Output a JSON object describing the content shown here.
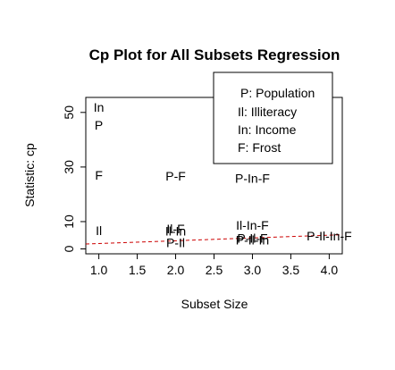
{
  "chart_data": {
    "type": "scatter",
    "title": "Cp Plot for All Subsets Regression",
    "xlabel": "Subset Size",
    "ylabel": "Statistic: cp",
    "xlim": [
      0.83,
      4.17
    ],
    "ylim": [
      -1.8,
      55.5
    ],
    "xticks": [
      "1.0",
      "1.5",
      "2.0",
      "2.5",
      "3.0",
      "3.5",
      "4.0"
    ],
    "xtick_values": [
      1.0,
      1.5,
      2.0,
      2.5,
      3.0,
      3.5,
      4.0
    ],
    "yticks": [
      "0",
      "10",
      "30",
      "50"
    ],
    "ytick_values": [
      0,
      10,
      30,
      50
    ],
    "grid": false,
    "legend_position": "top-right",
    "legend": [
      "P: Population",
      "Il: Illiteracy",
      "In: Income",
      "F: Frost"
    ],
    "points": [
      {
        "size": 1,
        "cp": 51.4,
        "label": "In"
      },
      {
        "size": 1,
        "cp": 45.0,
        "label": "P"
      },
      {
        "size": 1,
        "cp": 26.6,
        "label": "F"
      },
      {
        "size": 1,
        "cp": 6.3,
        "label": "Il"
      },
      {
        "size": 2,
        "cp": 26.3,
        "label": "P-F"
      },
      {
        "size": 2,
        "cp": 7.0,
        "label": "Il-F"
      },
      {
        "size": 2,
        "cp": 6.2,
        "label": "Il-In"
      },
      {
        "size": 2,
        "cp": 1.8,
        "label": "P-Il"
      },
      {
        "size": 3,
        "cp": 25.4,
        "label": "P-In-F"
      },
      {
        "size": 3,
        "cp": 8.3,
        "label": "Il-In-F"
      },
      {
        "size": 3,
        "cp": 3.5,
        "label": "P-Il-F"
      },
      {
        "size": 3,
        "cp": 2.8,
        "label": "P-Il-In"
      },
      {
        "size": 4,
        "cp": 4.4,
        "label": "P-Il-In-F"
      }
    ],
    "reference_line": {
      "x": [
        0.83,
        4.17
      ],
      "y": [
        1.8,
        5.2
      ],
      "color": "#cc0000",
      "style": "dashed"
    }
  }
}
